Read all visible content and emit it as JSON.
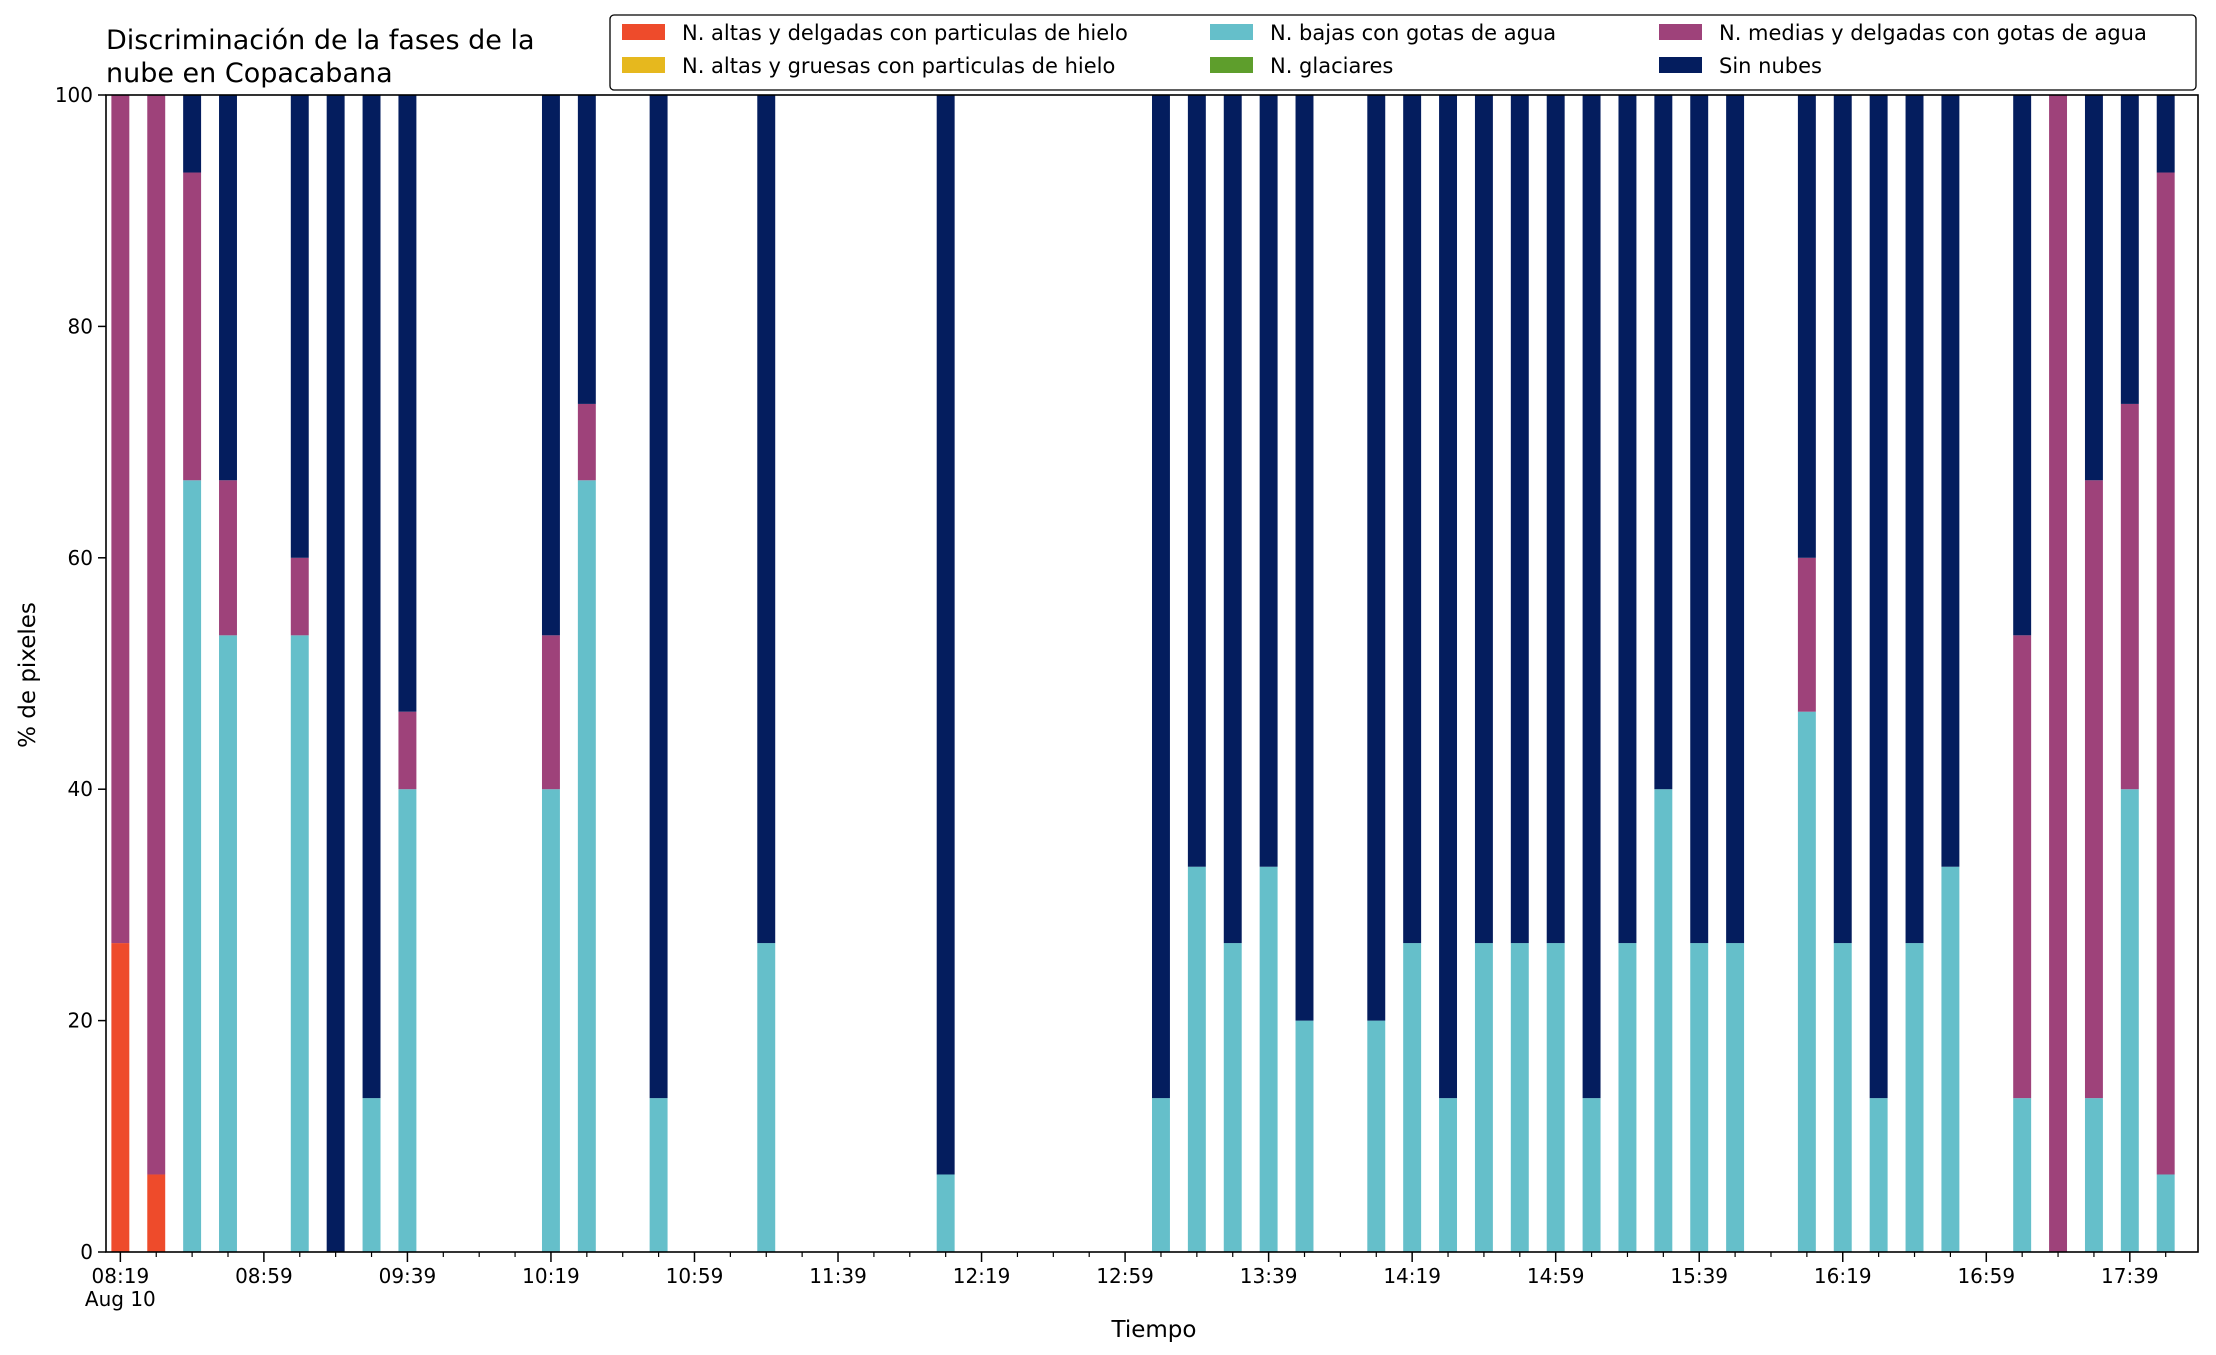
{
  "chart_data": {
    "type": "bar",
    "stacked": true,
    "title_lines": [
      "Discriminación de la fases de la",
      "nube en Copacabana"
    ],
    "xlabel": "Tiempo",
    "ylabel": "% de pixeles",
    "ylim": [
      0,
      100
    ],
    "yticks": [
      0,
      20,
      40,
      60,
      80,
      100
    ],
    "x_minutes_range": [
      495,
      1078
    ],
    "xticks": [
      {
        "minute": 499,
        "label": "08:19",
        "sublabel": "Aug 10"
      },
      {
        "minute": 539,
        "label": "08:59"
      },
      {
        "minute": 579,
        "label": "09:39"
      },
      {
        "minute": 619,
        "label": "10:19"
      },
      {
        "minute": 659,
        "label": "10:59"
      },
      {
        "minute": 699,
        "label": "11:39"
      },
      {
        "minute": 739,
        "label": "12:19"
      },
      {
        "minute": 779,
        "label": "12:59"
      },
      {
        "minute": 819,
        "label": "13:39"
      },
      {
        "minute": 859,
        "label": "14:19"
      },
      {
        "minute": 899,
        "label": "14:59"
      },
      {
        "minute": 939,
        "label": "15:39"
      },
      {
        "minute": 979,
        "label": "16:19"
      },
      {
        "minute": 1019,
        "label": "16:59"
      },
      {
        "minute": 1059,
        "label": "17:39"
      }
    ],
    "minor_tick_step": 10,
    "bar_width_minutes": 5,
    "legend_position": "top-right",
    "legend_columns": 3,
    "series": [
      {
        "name": "N. altas y delgadas con particulas de hielo",
        "color": "#ee4b2b"
      },
      {
        "name": "N. altas y gruesas con particulas de hielo",
        "color": "#e6b81e"
      },
      {
        "name": "N. bajas con gotas de agua",
        "color": "#65bfca"
      },
      {
        "name": "N. glaciares",
        "color": "#5e9e2c"
      },
      {
        "name": "N. medias y delgadas con gotas de agua",
        "color": "#9e427a"
      },
      {
        "name": "Sin nubes",
        "color": "#041d5e"
      }
    ],
    "stack_order": [
      0,
      1,
      2,
      3,
      4,
      5
    ],
    "bars": [
      {
        "time": "08:19",
        "minute": 499,
        "values": [
          26.7,
          0,
          0,
          0,
          73.3,
          0
        ]
      },
      {
        "time": "08:29",
        "minute": 509,
        "values": [
          6.7,
          0,
          0,
          0,
          93.3,
          0
        ]
      },
      {
        "time": "08:39",
        "minute": 519,
        "values": [
          0,
          0,
          66.7,
          0,
          26.6,
          6.7
        ]
      },
      {
        "time": "08:49",
        "minute": 529,
        "values": [
          0,
          0,
          53.3,
          0,
          13.4,
          33.3
        ]
      },
      {
        "time": "09:09",
        "minute": 549,
        "values": [
          0,
          0,
          53.3,
          0,
          6.7,
          40.0
        ]
      },
      {
        "time": "09:19",
        "minute": 559,
        "values": [
          0,
          0,
          0,
          0,
          0,
          100
        ]
      },
      {
        "time": "09:29",
        "minute": 569,
        "values": [
          0,
          0,
          13.3,
          0,
          0,
          86.7
        ]
      },
      {
        "time": "09:39",
        "minute": 579,
        "values": [
          0,
          0,
          40.0,
          0,
          6.7,
          53.3
        ]
      },
      {
        "time": "10:19",
        "minute": 619,
        "values": [
          0,
          0,
          40.0,
          0,
          13.3,
          46.7
        ]
      },
      {
        "time": "10:29",
        "minute": 629,
        "values": [
          0,
          0,
          66.7,
          0,
          6.6,
          26.7
        ]
      },
      {
        "time": "10:49",
        "minute": 649,
        "values": [
          0,
          0,
          13.3,
          0,
          0,
          86.7
        ]
      },
      {
        "time": "11:19",
        "minute": 679,
        "values": [
          0,
          0,
          26.7,
          0,
          0,
          73.3
        ]
      },
      {
        "time": "12:09",
        "minute": 729,
        "values": [
          0,
          0,
          6.7,
          0,
          0,
          93.3
        ]
      },
      {
        "time": "13:09",
        "minute": 789,
        "values": [
          0,
          0,
          13.3,
          0,
          0,
          86.7
        ]
      },
      {
        "time": "13:19",
        "minute": 799,
        "values": [
          0,
          0,
          33.3,
          0,
          0,
          66.7
        ]
      },
      {
        "time": "13:29",
        "minute": 809,
        "values": [
          0,
          0,
          26.7,
          0,
          0,
          73.3
        ]
      },
      {
        "time": "13:39",
        "minute": 819,
        "values": [
          0,
          0,
          33.3,
          0,
          0,
          66.7
        ]
      },
      {
        "time": "13:49",
        "minute": 829,
        "values": [
          0,
          0,
          20.0,
          0,
          0,
          80.0
        ]
      },
      {
        "time": "14:09",
        "minute": 849,
        "values": [
          0,
          0,
          20.0,
          0,
          0,
          80.0
        ]
      },
      {
        "time": "14:19",
        "minute": 859,
        "values": [
          0,
          0,
          26.7,
          0,
          0,
          73.3
        ]
      },
      {
        "time": "14:29",
        "minute": 869,
        "values": [
          0,
          0,
          13.3,
          0,
          0,
          86.7
        ]
      },
      {
        "time": "14:39",
        "minute": 879,
        "values": [
          0,
          0,
          26.7,
          0,
          0,
          73.3
        ]
      },
      {
        "time": "14:49",
        "minute": 889,
        "values": [
          0,
          0,
          26.7,
          0,
          0,
          73.3
        ]
      },
      {
        "time": "14:59",
        "minute": 899,
        "values": [
          0,
          0,
          26.7,
          0,
          0,
          73.3
        ]
      },
      {
        "time": "15:09",
        "minute": 909,
        "values": [
          0,
          0,
          13.3,
          0,
          0,
          86.7
        ]
      },
      {
        "time": "15:19",
        "minute": 919,
        "values": [
          0,
          0,
          26.7,
          0,
          0,
          73.3
        ]
      },
      {
        "time": "15:29",
        "minute": 929,
        "values": [
          0,
          0,
          40.0,
          0,
          0,
          60.0
        ]
      },
      {
        "time": "15:39",
        "minute": 939,
        "values": [
          0,
          0,
          26.7,
          0,
          0,
          73.3
        ]
      },
      {
        "time": "15:49",
        "minute": 949,
        "values": [
          0,
          0,
          26.7,
          0,
          0,
          73.3
        ]
      },
      {
        "time": "16:09",
        "minute": 969,
        "values": [
          0,
          0,
          46.7,
          0,
          13.3,
          40.0
        ]
      },
      {
        "time": "16:19",
        "minute": 979,
        "values": [
          0,
          0,
          26.7,
          0,
          0,
          73.3
        ]
      },
      {
        "time": "16:29",
        "minute": 989,
        "values": [
          0,
          0,
          13.3,
          0,
          0,
          86.7
        ]
      },
      {
        "time": "16:39",
        "minute": 999,
        "values": [
          0,
          0,
          26.7,
          0,
          0,
          73.3
        ]
      },
      {
        "time": "16:49",
        "minute": 1009,
        "values": [
          0,
          0,
          33.3,
          0,
          0,
          66.7
        ]
      },
      {
        "time": "17:09",
        "minute": 1029,
        "values": [
          0,
          0,
          13.3,
          0,
          40.0,
          46.7
        ]
      },
      {
        "time": "17:19",
        "minute": 1039,
        "values": [
          0,
          0,
          0,
          0,
          100,
          0
        ]
      },
      {
        "time": "17:29",
        "minute": 1049,
        "values": [
          0,
          0,
          13.3,
          0,
          53.4,
          33.3
        ]
      },
      {
        "time": "17:39",
        "minute": 1059,
        "values": [
          0,
          0,
          40.0,
          0,
          33.3,
          26.7
        ]
      },
      {
        "time": "17:49",
        "minute": 1069,
        "values": [
          0,
          0,
          6.7,
          0,
          86.6,
          6.7
        ]
      }
    ]
  }
}
